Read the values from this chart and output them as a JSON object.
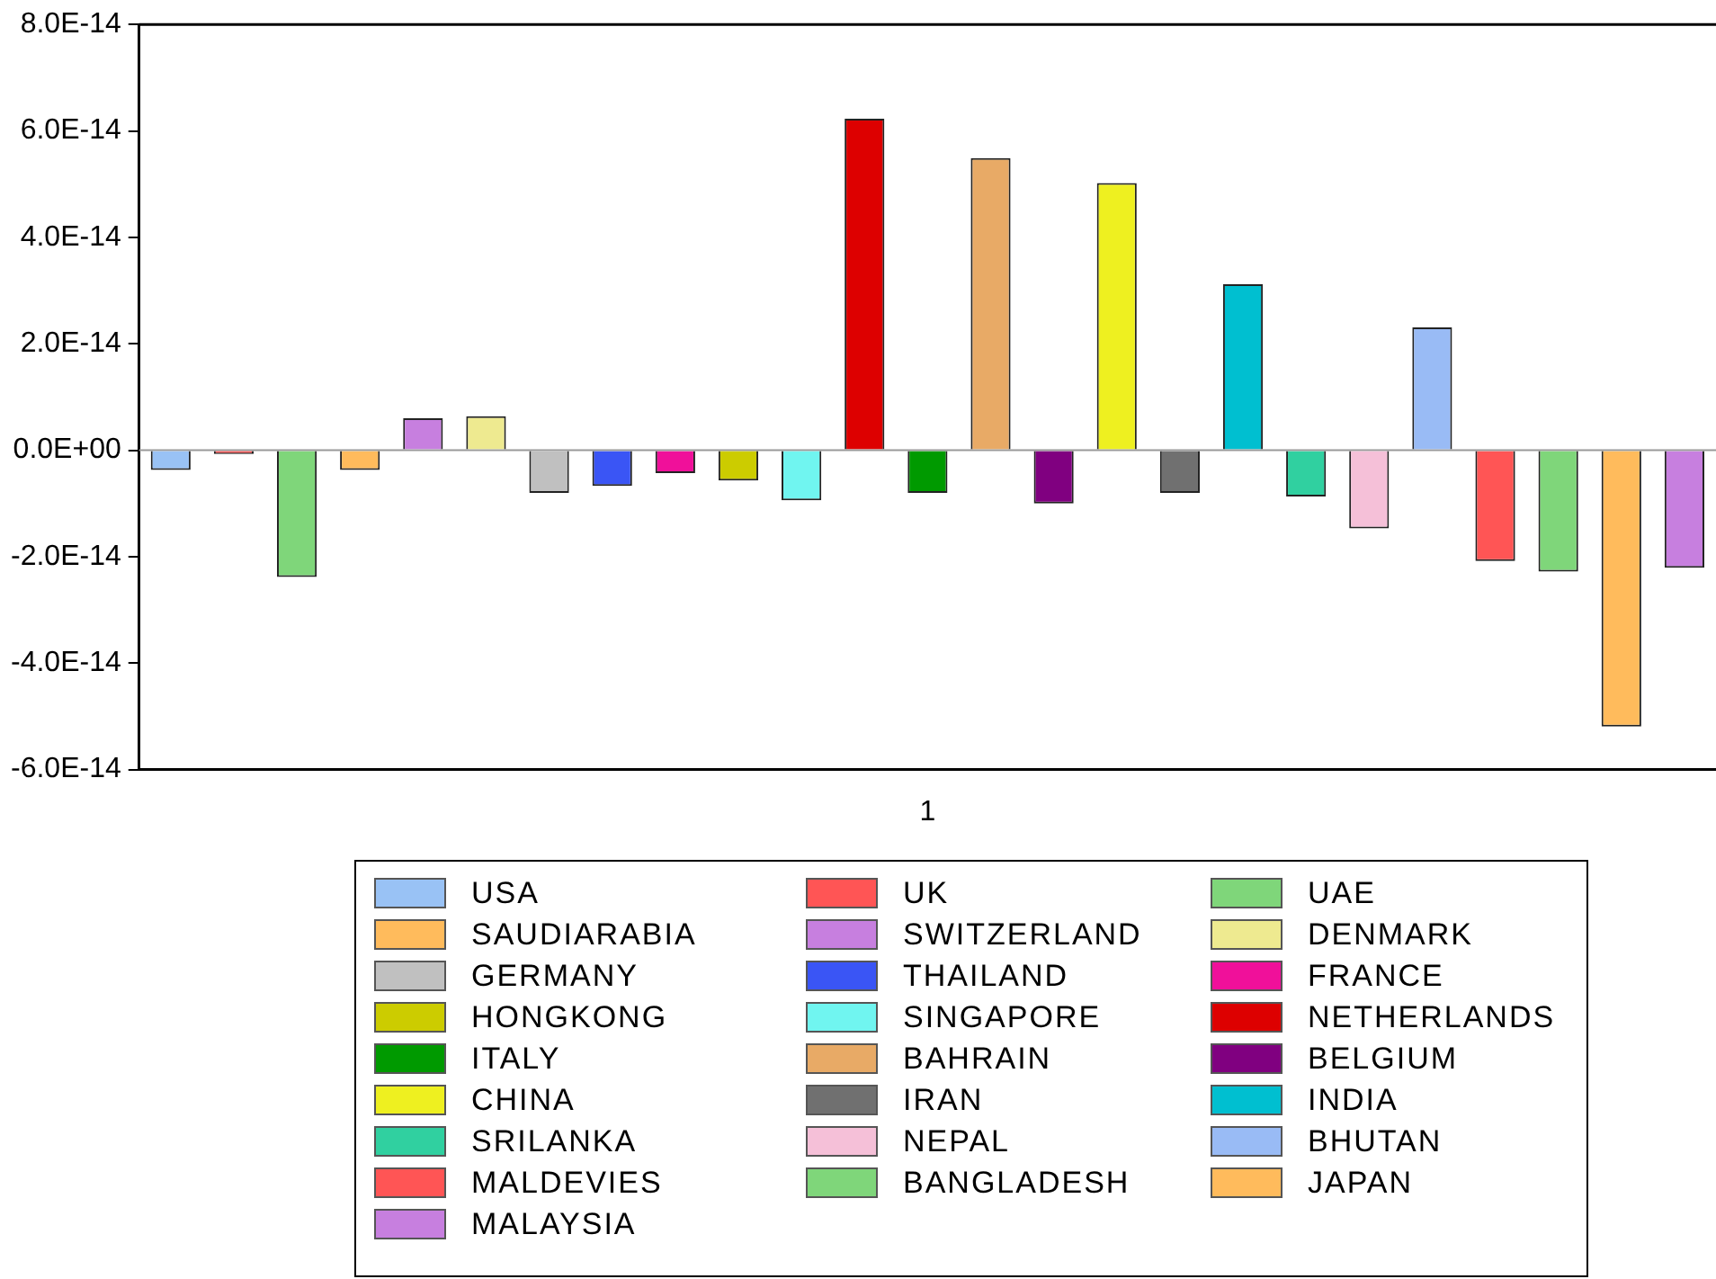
{
  "chart_data": {
    "type": "bar",
    "categories": [
      "1"
    ],
    "series": [
      {
        "name": "USA",
        "color": "#99c2f5",
        "values": [
          -3.7e-15
        ]
      },
      {
        "name": "UK",
        "color": "#ff5555",
        "values": [
          -7e-16
        ]
      },
      {
        "name": "UAE",
        "color": "#7fd67a",
        "values": [
          -2.38e-14
        ]
      },
      {
        "name": "SAUDIARABIA",
        "color": "#ffbb5c",
        "values": [
          -3.7e-15
        ]
      },
      {
        "name": "SWITZERLAND",
        "color": "#c77fdf",
        "values": [
          6e-15
        ]
      },
      {
        "name": "DENMARK",
        "color": "#eeea90",
        "values": [
          6.4e-15
        ]
      },
      {
        "name": "GERMANY",
        "color": "#c0c0c0",
        "values": [
          -8e-15
        ]
      },
      {
        "name": "THAILAND",
        "color": "#3a55f5",
        "values": [
          -6.7e-15
        ]
      },
      {
        "name": "FRANCE",
        "color": "#f0109a",
        "values": [
          -4.3e-15
        ]
      },
      {
        "name": "HONGKONG",
        "color": "#cccc00",
        "values": [
          -5.7e-15
        ]
      },
      {
        "name": "SINGAPORE",
        "color": "#70f5f0",
        "values": [
          -9.4e-15
        ]
      },
      {
        "name": "NETHERLANDS",
        "color": "#dd0000",
        "values": [
          6.23e-14
        ]
      },
      {
        "name": "ITALY",
        "color": "#009a00",
        "values": [
          -8e-15
        ]
      },
      {
        "name": "BAHRAIN",
        "color": "#e8aa66",
        "values": [
          5.49e-14
        ]
      },
      {
        "name": "BELGIUM",
        "color": "#800080",
        "values": [
          -1e-14
        ]
      },
      {
        "name": "CHINA",
        "color": "#eef020",
        "values": [
          5.02e-14
        ]
      },
      {
        "name": "IRAN",
        "color": "#707070",
        "values": [
          -8e-15
        ]
      },
      {
        "name": "INDIA",
        "color": "#00bfd0",
        "values": [
          3.12e-14
        ]
      },
      {
        "name": "SRILANKA",
        "color": "#30d0a0",
        "values": [
          -8.7e-15
        ]
      },
      {
        "name": "NEPAL",
        "color": "#f5c0d8",
        "values": [
          -1.47e-14
        ]
      },
      {
        "name": "BHUTAN",
        "color": "#99bbf5",
        "values": [
          2.31e-14
        ]
      },
      {
        "name": "MALDEVIES",
        "color": "#ff5555",
        "values": [
          -2.08e-14
        ]
      },
      {
        "name": "BANGLADESH",
        "color": "#7fd67a",
        "values": [
          -2.28e-14
        ]
      },
      {
        "name": "JAPAN",
        "color": "#ffbb5c",
        "values": [
          -5.19e-14
        ]
      },
      {
        "name": "MALAYSIA",
        "color": "#c77fdf",
        "values": [
          -2.21e-14
        ]
      }
    ],
    "ylim": [
      -6e-14,
      8e-14
    ],
    "yticks": [
      {
        "value": -6e-14,
        "label": "-6.0E-14"
      },
      {
        "value": -4e-14,
        "label": "-4.0E-14"
      },
      {
        "value": -2e-14,
        "label": "-2.0E-14"
      },
      {
        "value": 0,
        "label": "0.0E+00"
      },
      {
        "value": 2e-14,
        "label": "2.0E-14"
      },
      {
        "value": 4e-14,
        "label": "4.0E-14"
      },
      {
        "value": 6e-14,
        "label": "6.0E-14"
      },
      {
        "value": 8e-14,
        "label": "8.0E-14"
      }
    ],
    "ref_lines": [
      {
        "axis": "y",
        "value": 0,
        "color": "#999999"
      }
    ],
    "grid": false,
    "legend": "bottom"
  }
}
